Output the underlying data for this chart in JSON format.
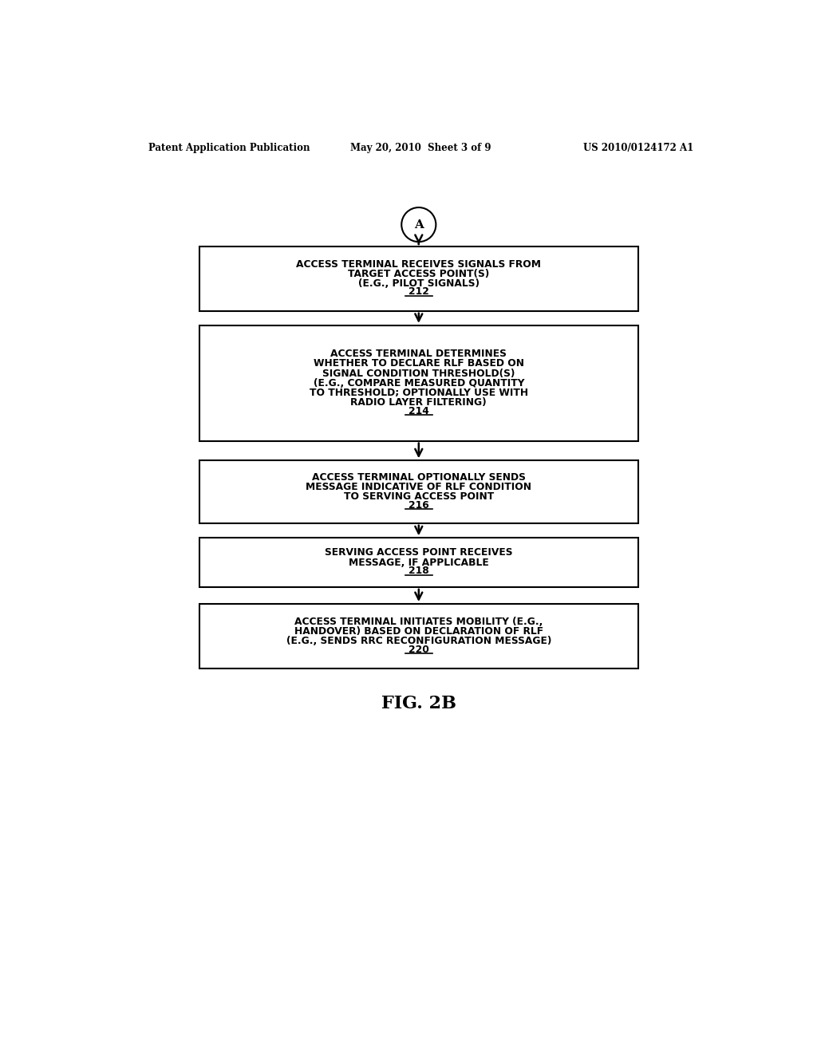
{
  "header_left": "Patent Application Publication",
  "header_mid": "May 20, 2010  Sheet 3 of 9",
  "header_right": "US 2010/0124172 A1",
  "circle_label": "A",
  "boxes": [
    {
      "lines": [
        "ACCESS TERMINAL RECEIVES SIGNALS FROM",
        "TARGET ACCESS POINT(S)",
        "(E.G., PILOT SIGNALS)"
      ],
      "ref": "212"
    },
    {
      "lines": [
        "ACCESS TERMINAL DETERMINES",
        "WHETHER TO DECLARE RLF BASED ON",
        "SIGNAL CONDITION THRESHOLD(S)",
        "(E.G., COMPARE MEASURED QUANTITY",
        "TO THRESHOLD; OPTIONALLY USE WITH",
        "RADIO LAYER FILTERING)"
      ],
      "ref": "214"
    },
    {
      "lines": [
        "ACCESS TERMINAL OPTIONALLY SENDS",
        "MESSAGE INDICATIVE OF RLF CONDITION",
        "TO SERVING ACCESS POINT"
      ],
      "ref": "216"
    },
    {
      "lines": [
        "SERVING ACCESS POINT RECEIVES",
        "MESSAGE, IF APPLICABLE"
      ],
      "ref": "218"
    },
    {
      "lines": [
        "ACCESS TERMINAL INITIATES MOBILITY (E.G.,",
        "HANDOVER) BASED ON DECLARATION OF RLF",
        "(E.G., SENDS RRC RECONFIGURATION MESSAGE)"
      ],
      "ref": "220"
    }
  ],
  "fig_label": "FIG. 2B",
  "bg_color": "#ffffff",
  "box_color": "#000000",
  "text_color": "#000000",
  "arrow_color": "#000000"
}
